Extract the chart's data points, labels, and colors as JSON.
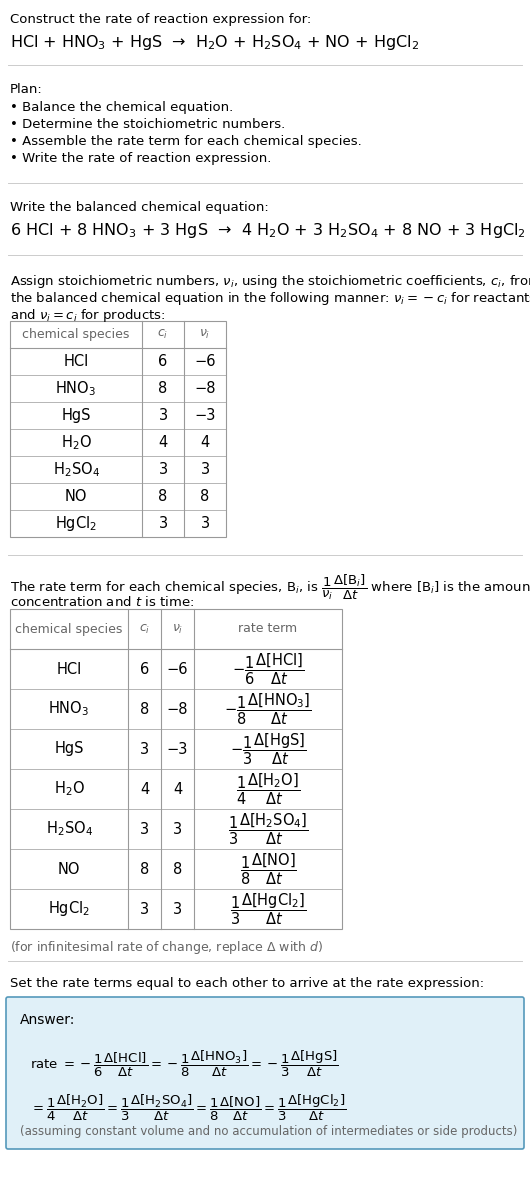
{
  "bg_color": "#ffffff",
  "text_color": "#000000",
  "gray_color": "#666666",
  "table_border_color": "#999999",
  "answer_bg_color": "#e0f0f8",
  "answer_border_color": "#5599bb",
  "title_text": "Construct the rate of reaction expression for:",
  "reaction_unbalanced": "HCl + HNO$_3$ + HgS  →  H$_2$O + H$_2$SO$_4$ + NO + HgCl$_2$",
  "plan_header": "Plan:",
  "plan_items": [
    "• Balance the chemical equation.",
    "• Determine the stoichiometric numbers.",
    "• Assemble the rate term for each chemical species.",
    "• Write the rate of reaction expression."
  ],
  "balanced_header": "Write the balanced chemical equation:",
  "reaction_balanced": "6 HCl + 8 HNO$_3$ + 3 HgS  →  4 H$_2$O + 3 H$_2$SO$_4$ + 8 NO + 3 HgCl$_2$",
  "stoich_intro_l1": "Assign stoichiometric numbers, $\\nu_i$, using the stoichiometric coefficients, $c_i$, from",
  "stoich_intro_l2": "the balanced chemical equation in the following manner: $\\nu_i = -c_i$ for reactants",
  "stoich_intro_l3": "and $\\nu_i = c_i$ for products:",
  "table1_headers": [
    "chemical species",
    "$c_i$",
    "$\\nu_i$"
  ],
  "table1_rows": [
    [
      "HCl",
      "6",
      "−6"
    ],
    [
      "HNO$_3$",
      "8",
      "−8"
    ],
    [
      "HgS",
      "3",
      "−3"
    ],
    [
      "H$_2$O",
      "4",
      "4"
    ],
    [
      "H$_2$SO$_4$",
      "3",
      "3"
    ],
    [
      "NO",
      "8",
      "8"
    ],
    [
      "HgCl$_2$",
      "3",
      "3"
    ]
  ],
  "rate_intro_l1": "The rate term for each chemical species, B$_i$, is $\\dfrac{1}{\\nu_i}\\dfrac{\\Delta[\\mathrm{B}_i]}{\\Delta t}$ where [B$_i$] is the amount",
  "rate_intro_l2": "concentration and $t$ is time:",
  "table2_headers": [
    "chemical species",
    "$c_i$",
    "$\\nu_i$",
    "rate term"
  ],
  "table2_rows": [
    [
      "HCl",
      "6",
      "−6",
      "$-\\dfrac{1}{6}\\dfrac{\\Delta[\\mathrm{HCl}]}{\\Delta t}$"
    ],
    [
      "HNO$_3$",
      "8",
      "−8",
      "$-\\dfrac{1}{8}\\dfrac{\\Delta[\\mathrm{HNO_3}]}{\\Delta t}$"
    ],
    [
      "HgS",
      "3",
      "−3",
      "$-\\dfrac{1}{3}\\dfrac{\\Delta[\\mathrm{HgS}]}{\\Delta t}$"
    ],
    [
      "H$_2$O",
      "4",
      "4",
      "$\\dfrac{1}{4}\\dfrac{\\Delta[\\mathrm{H_2O}]}{\\Delta t}$"
    ],
    [
      "H$_2$SO$_4$",
      "3",
      "3",
      "$\\dfrac{1}{3}\\dfrac{\\Delta[\\mathrm{H_2SO_4}]}{\\Delta t}$"
    ],
    [
      "NO",
      "8",
      "8",
      "$\\dfrac{1}{8}\\dfrac{\\Delta[\\mathrm{NO}]}{\\Delta t}$"
    ],
    [
      "HgCl$_2$",
      "3",
      "3",
      "$\\dfrac{1}{3}\\dfrac{\\Delta[\\mathrm{HgCl_2}]}{\\Delta t}$"
    ]
  ],
  "infinitesimal_note": "(for infinitesimal rate of change, replace Δ with $d$)",
  "set_equal_text": "Set the rate terms equal to each other to arrive at the rate expression:",
  "answer_label": "Answer:",
  "answer_line1": "rate $= -\\dfrac{1}{6}\\dfrac{\\Delta[\\mathrm{HCl}]}{\\Delta t} = -\\dfrac{1}{8}\\dfrac{\\Delta[\\mathrm{HNO_3}]}{\\Delta t} = -\\dfrac{1}{3}\\dfrac{\\Delta[\\mathrm{HgS}]}{\\Delta t}$",
  "answer_line2": "$= \\dfrac{1}{4}\\dfrac{\\Delta[\\mathrm{H_2O}]}{\\Delta t} = \\dfrac{1}{3}\\dfrac{\\Delta[\\mathrm{H_2SO_4}]}{\\Delta t} = \\dfrac{1}{8}\\dfrac{\\Delta[\\mathrm{NO}]}{\\Delta t} = \\dfrac{1}{3}\\dfrac{\\Delta[\\mathrm{HgCl_2}]}{\\Delta t}$",
  "answer_note": "(assuming constant volume and no accumulation of intermediates or side products)",
  "fig_w": 5.3,
  "fig_h": 12.04,
  "dpi": 100
}
